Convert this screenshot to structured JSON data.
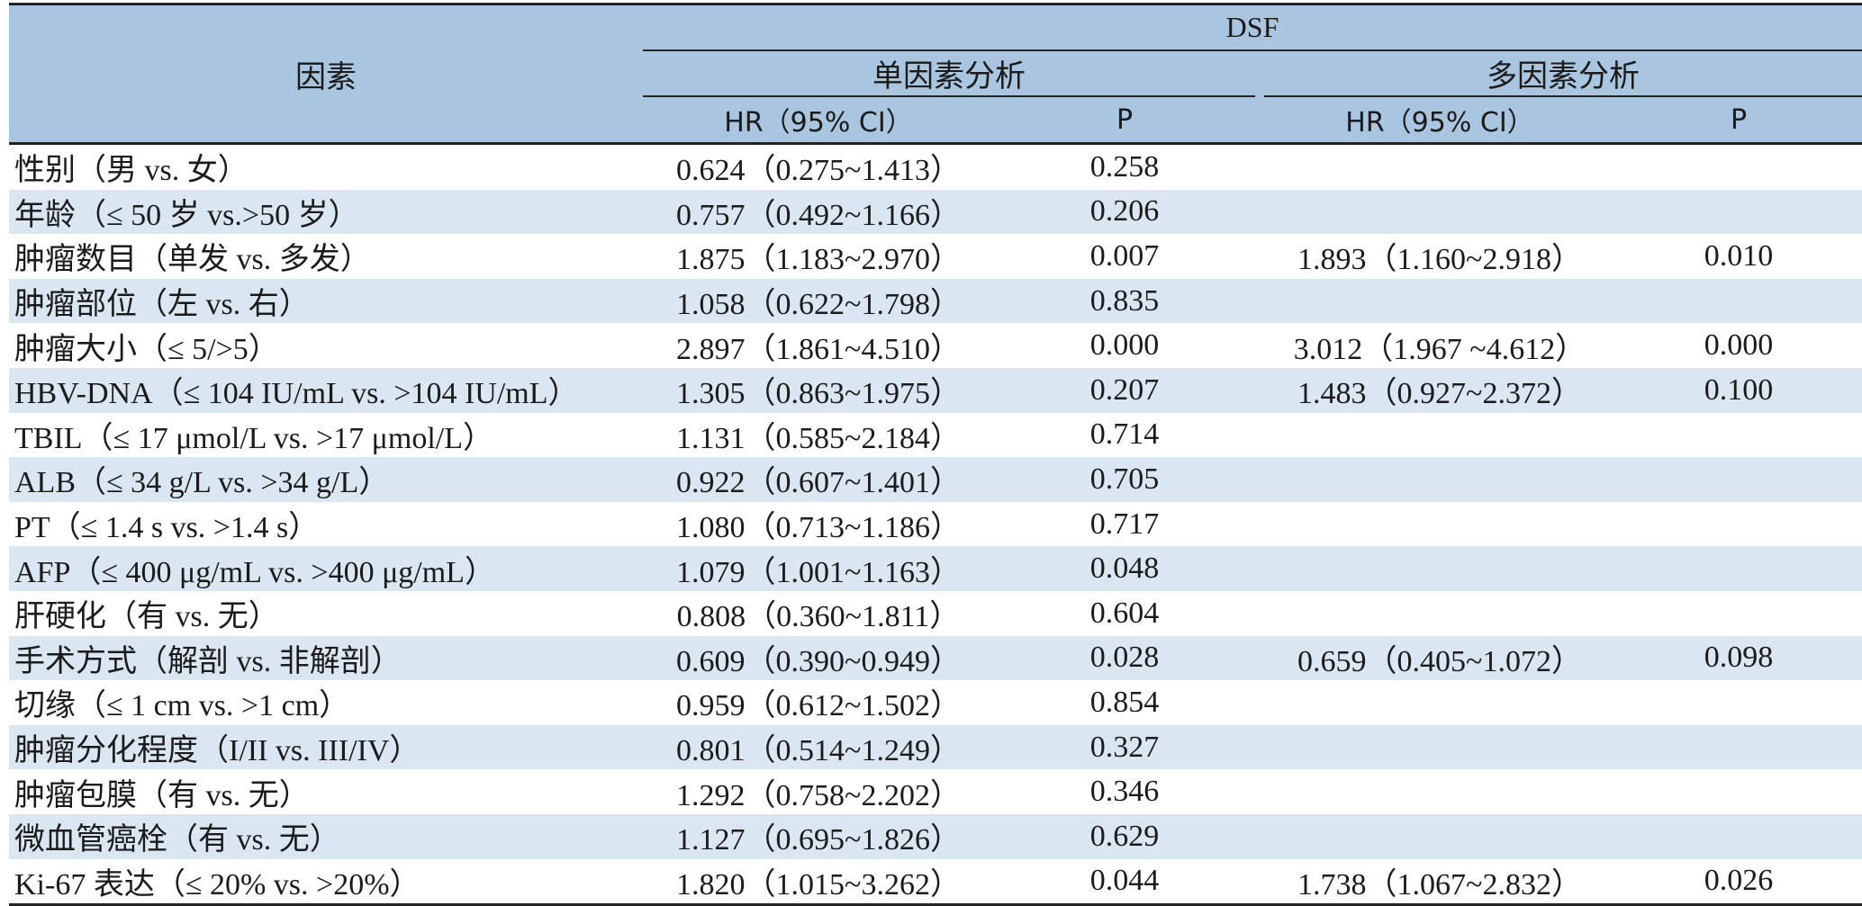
{
  "header": {
    "factor": "因素",
    "group": "DSF",
    "univariate": "单因素分析",
    "multivariate": "多因素分析",
    "hr_label": "HR（95% CI）",
    "p_label": "P"
  },
  "rows": [
    {
      "factor": "性别（男 vs. 女）",
      "uni_hr": "0.624（0.275~1.413）",
      "uni_p": "0.258",
      "multi_hr": "",
      "multi_p": ""
    },
    {
      "factor": "年龄（≤ 50 岁 vs.>50 岁）",
      "uni_hr": "0.757（0.492~1.166）",
      "uni_p": "0.206",
      "multi_hr": "",
      "multi_p": ""
    },
    {
      "factor": "肿瘤数目（单发 vs. 多发）",
      "uni_hr": "1.875（1.183~2.970）",
      "uni_p": "0.007",
      "multi_hr": "1.893（1.160~2.918）",
      "multi_p": "0.010"
    },
    {
      "factor": "肿瘤部位（左 vs. 右）",
      "uni_hr": "1.058（0.622~1.798）",
      "uni_p": "0.835",
      "multi_hr": "",
      "multi_p": ""
    },
    {
      "factor": "肿瘤大小（≤ 5/>5）",
      "uni_hr": "2.897（1.861~4.510）",
      "uni_p": "0.000",
      "multi_hr": "3.012（1.967 ~4.612）",
      "multi_p": "0.000"
    },
    {
      "factor": "HBV-DNA（≤ 104 IU/mL vs. >104 IU/mL）",
      "uni_hr": "1.305（0.863~1.975）",
      "uni_p": "0.207",
      "multi_hr": "1.483（0.927~2.372）",
      "multi_p": "0.100"
    },
    {
      "factor": "TBIL（≤ 17 μmol/L vs. >17 μmol/L）",
      "uni_hr": "1.131（0.585~2.184）",
      "uni_p": "0.714",
      "multi_hr": "",
      "multi_p": ""
    },
    {
      "factor": "ALB（≤ 34 g/L vs. >34 g/L）",
      "uni_hr": "0.922（0.607~1.401）",
      "uni_p": "0.705",
      "multi_hr": "",
      "multi_p": ""
    },
    {
      "factor": "PT（≤ 1.4 s vs. >1.4 s）",
      "uni_hr": "1.080（0.713~1.186）",
      "uni_p": "0.717",
      "multi_hr": "",
      "multi_p": ""
    },
    {
      "factor": "AFP（≤ 400 μg/mL vs. >400 μg/mL）",
      "uni_hr": "1.079（1.001~1.163）",
      "uni_p": "0.048",
      "multi_hr": "",
      "multi_p": ""
    },
    {
      "factor": "肝硬化（有 vs. 无）",
      "uni_hr": "0.808（0.360~1.811）",
      "uni_p": "0.604",
      "multi_hr": "",
      "multi_p": ""
    },
    {
      "factor": "手术方式（解剖 vs. 非解剖）",
      "uni_hr": "0.609（0.390~0.949）",
      "uni_p": "0.028",
      "multi_hr": "0.659（0.405~1.072）",
      "multi_p": "0.098"
    },
    {
      "factor": "切缘（≤ 1 cm vs. >1 cm）",
      "uni_hr": "0.959（0.612~1.502）",
      "uni_p": "0.854",
      "multi_hr": "",
      "multi_p": ""
    },
    {
      "factor": "肿瘤分化程度（I/II vs. III/IV）",
      "uni_hr": "0.801（0.514~1.249）",
      "uni_p": "0.327",
      "multi_hr": "",
      "multi_p": ""
    },
    {
      "factor": "肿瘤包膜（有 vs. 无）",
      "uni_hr": "1.292（0.758~2.202）",
      "uni_p": "0.346",
      "multi_hr": "",
      "multi_p": ""
    },
    {
      "factor": "微血管癌栓（有 vs. 无）",
      "uni_hr": "1.127（0.695~1.826）",
      "uni_p": "0.629",
      "multi_hr": "",
      "multi_p": ""
    },
    {
      "factor": "Ki-67 表达（≤ 20% vs. >20%）",
      "uni_hr": "1.820（1.015~3.262）",
      "uni_p": "0.044",
      "multi_hr": "1.738（1.067~2.832）",
      "multi_p": "0.026"
    }
  ],
  "colors": {
    "header_bg": "#a9c5e0",
    "alt_row_bg": "#dae6f2",
    "rule": "#222222"
  }
}
